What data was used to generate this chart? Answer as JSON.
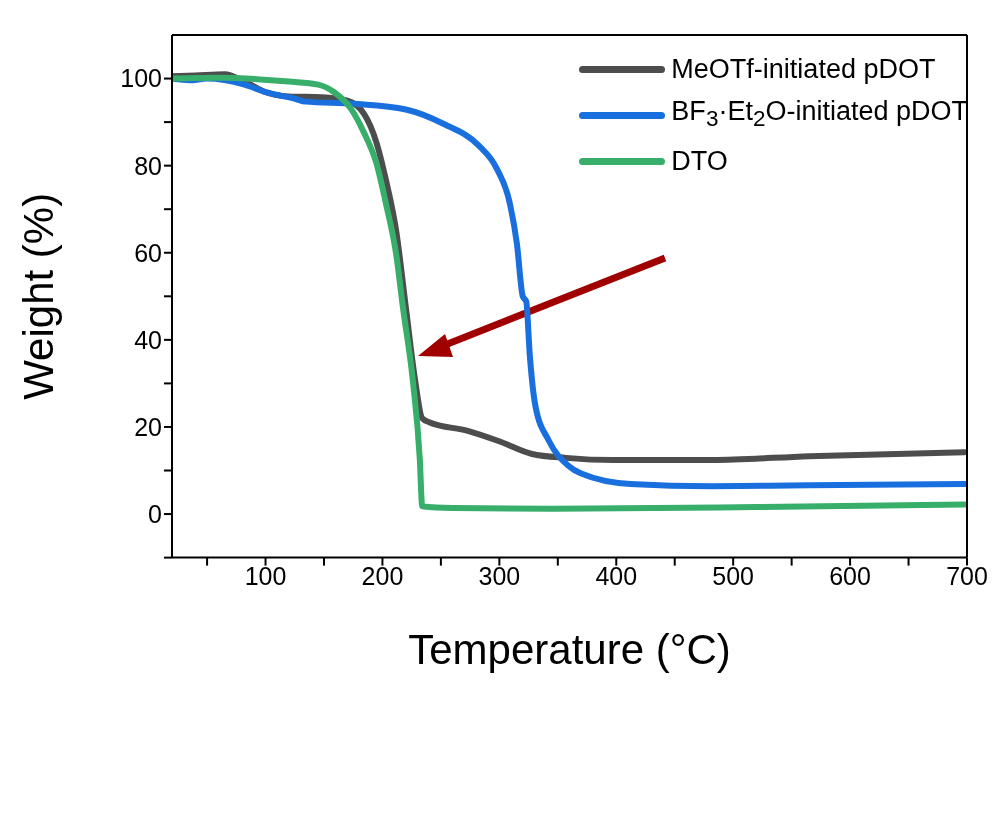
{
  "chart_data": {
    "type": "line",
    "xlabel": "Temperature (°C)",
    "ylabel": "Weight (%)",
    "xlim": [
      20,
      700
    ],
    "ylim": [
      -10,
      110
    ],
    "xticks": [
      {
        "value": 50,
        "label": null
      },
      100,
      {
        "value": 150,
        "label": null
      },
      200,
      {
        "value": 250,
        "label": null
      },
      300,
      {
        "value": 350,
        "label": null
      },
      400,
      {
        "value": 450,
        "label": null
      },
      500,
      {
        "value": 550,
        "label": null
      },
      600,
      {
        "value": 650,
        "label": null
      },
      700
    ],
    "yticks": [
      {
        "value": -10,
        "label": null
      },
      0,
      {
        "value": 10,
        "label": null
      },
      20,
      {
        "value": 30,
        "label": null
      },
      40,
      {
        "value": 50,
        "label": null
      },
      60,
      {
        "value": 70,
        "label": null
      },
      80,
      {
        "value": 90,
        "label": null
      },
      100
    ],
    "legend": "top right",
    "marker": "none",
    "line_style": "solid",
    "series": [
      {
        "name": "MeOTf-initiated pDOT",
        "color": "#4d4d4d",
        "x": [
          20,
          40,
          65,
          82,
          98,
          120,
          148,
          170,
          184,
          195,
          203,
          212,
          220,
          228,
          234,
          240,
          273,
          301,
          328,
          357,
          398,
          482,
          565,
          698
        ],
        "values": [
          100.5,
          100.7,
          101,
          99.3,
          97.1,
          95.9,
          95.7,
          94.9,
          92,
          85.2,
          76.7,
          64.6,
          47.5,
          30.6,
          22,
          21.1,
          19.1,
          16.6,
          13.8,
          12.9,
          12.4,
          12.4,
          13.3,
          14.2
        ]
      },
      {
        "name": "BF$_{3}$·Et$_{2}$O-initiated pDOT",
        "color": "#1a6fdf",
        "x": [
          20,
          35,
          50,
          82,
          101,
          126,
          134,
          176,
          220,
          253,
          282,
          298,
          309,
          315,
          320,
          323,
          326,
          331,
          342,
          359,
          370,
          412,
          482,
          565,
          698
        ],
        "values": [
          100,
          99.6,
          100,
          98.6,
          96.8,
          95.3,
          94.7,
          94.2,
          92.9,
          89.5,
          84.7,
          79.2,
          71.3,
          62.1,
          50,
          48.8,
          36.6,
          24.6,
          17,
          11.1,
          9.3,
          6.9,
          6.4,
          6.6,
          6.9
        ]
      },
      {
        "name": "DTO",
        "color": "#37ae6a",
        "x": [
          20,
          60,
          120,
          145,
          159,
          173,
          184,
          195,
          203,
          212,
          217.5,
          226,
          232,
          234,
          260,
          342,
          520,
          698
        ],
        "values": [
          100,
          100.2,
          99.3,
          98.6,
          96.8,
          93.1,
          87.7,
          80.4,
          71.3,
          59.2,
          47.5,
          30.6,
          12.4,
          1.8,
          1.4,
          1.2,
          1.6,
          2.2
        ]
      }
    ]
  }
}
